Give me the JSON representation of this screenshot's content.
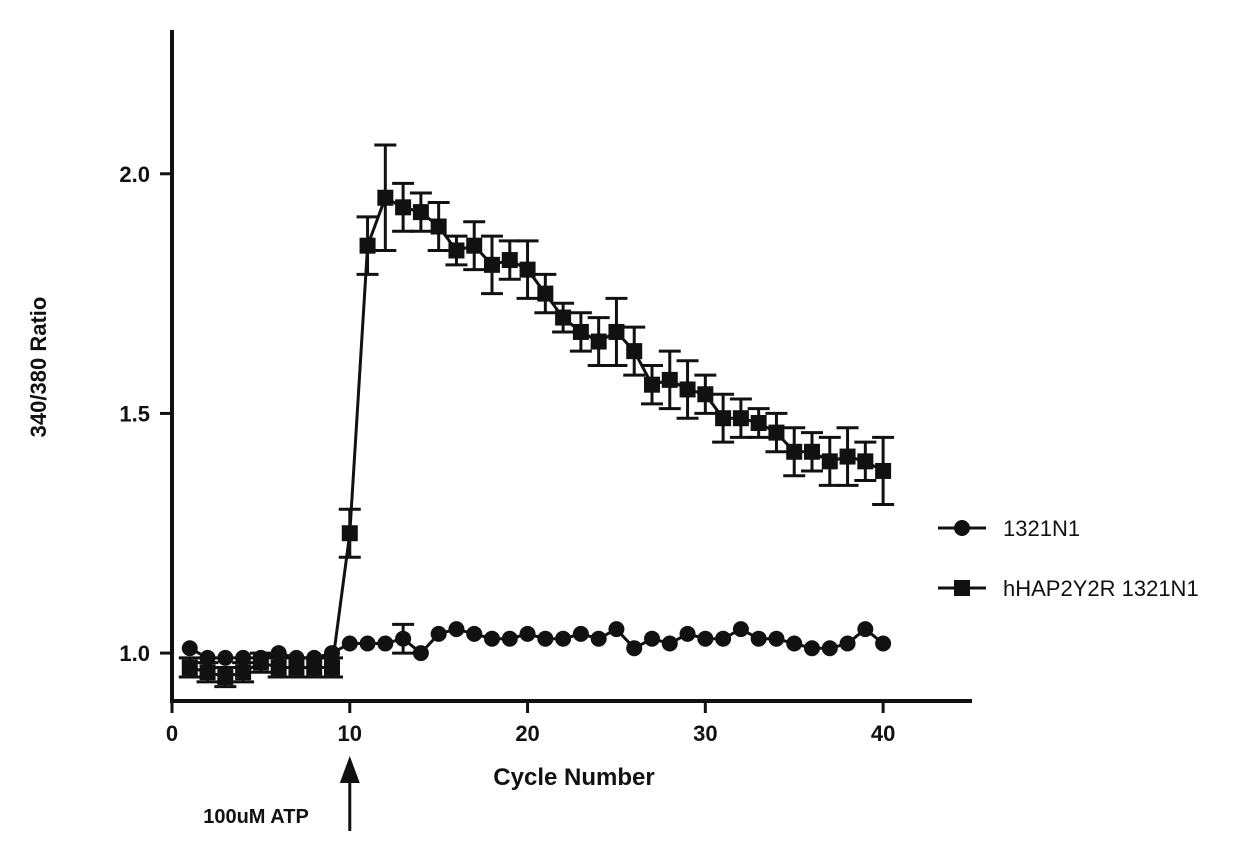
{
  "chart_data": {
    "type": "line",
    "title": "",
    "xlabel": "Cycle Number",
    "ylabel": "340/380 Ratio",
    "xlim": [
      0,
      45
    ],
    "ylim": [
      0.9,
      2.3
    ],
    "x_ticks": [
      0,
      10,
      20,
      30,
      40
    ],
    "y_ticks": [
      1.0,
      1.5,
      2.0
    ],
    "x_tick_labels": [
      "0",
      "10",
      "20",
      "30",
      "40"
    ],
    "y_tick_labels": [
      "1.0",
      "1.5",
      "2.0"
    ],
    "grid": false,
    "legend_position": "right",
    "annotation": {
      "text": "100uM ATP",
      "x": 10
    },
    "x": [
      1,
      2,
      3,
      4,
      5,
      6,
      7,
      8,
      9,
      10,
      11,
      12,
      13,
      14,
      15,
      16,
      17,
      18,
      19,
      20,
      21,
      22,
      23,
      24,
      25,
      26,
      27,
      28,
      29,
      30,
      31,
      32,
      33,
      34,
      35,
      36,
      37,
      38,
      39,
      40
    ],
    "series": [
      {
        "name": "1321N1",
        "marker": "circle",
        "values": [
          1.01,
          0.99,
          0.99,
          0.99,
          0.99,
          1.0,
          0.99,
          0.99,
          1.0,
          1.02,
          1.02,
          1.02,
          1.03,
          1.0,
          1.04,
          1.05,
          1.04,
          1.03,
          1.03,
          1.04,
          1.03,
          1.03,
          1.04,
          1.03,
          1.05,
          1.01,
          1.03,
          1.02,
          1.04,
          1.03,
          1.03,
          1.05,
          1.03,
          1.03,
          1.02,
          1.01,
          1.01,
          1.02,
          1.05,
          1.02
        ],
        "errors": [
          0,
          0,
          0,
          0,
          0,
          0,
          0,
          0,
          0,
          0,
          0,
          0,
          0.03,
          0,
          0,
          0,
          0,
          0,
          0,
          0,
          0,
          0,
          0,
          0,
          0,
          0,
          0,
          0,
          0,
          0,
          0,
          0,
          0,
          0,
          0,
          0,
          0,
          0,
          0,
          0
        ]
      },
      {
        "name": "hHAP2Y2R 1321N1",
        "marker": "square",
        "values": [
          0.97,
          0.96,
          0.95,
          0.96,
          0.98,
          0.97,
          0.97,
          0.97,
          0.97,
          1.25,
          1.85,
          1.95,
          1.93,
          1.92,
          1.89,
          1.84,
          1.85,
          1.81,
          1.82,
          1.8,
          1.75,
          1.7,
          1.67,
          1.65,
          1.67,
          1.63,
          1.56,
          1.57,
          1.55,
          1.54,
          1.49,
          1.49,
          1.48,
          1.46,
          1.42,
          1.42,
          1.4,
          1.41,
          1.4,
          1.38
        ],
        "errors": [
          0.02,
          0.02,
          0.02,
          0.02,
          0.02,
          0.02,
          0.02,
          0.02,
          0.02,
          0.05,
          0.06,
          0.11,
          0.05,
          0.04,
          0.05,
          0.03,
          0.05,
          0.06,
          0.04,
          0.06,
          0.04,
          0.03,
          0.04,
          0.05,
          0.07,
          0.05,
          0.04,
          0.06,
          0.06,
          0.04,
          0.05,
          0.04,
          0.03,
          0.04,
          0.05,
          0.04,
          0.05,
          0.06,
          0.04,
          0.07
        ]
      }
    ]
  }
}
